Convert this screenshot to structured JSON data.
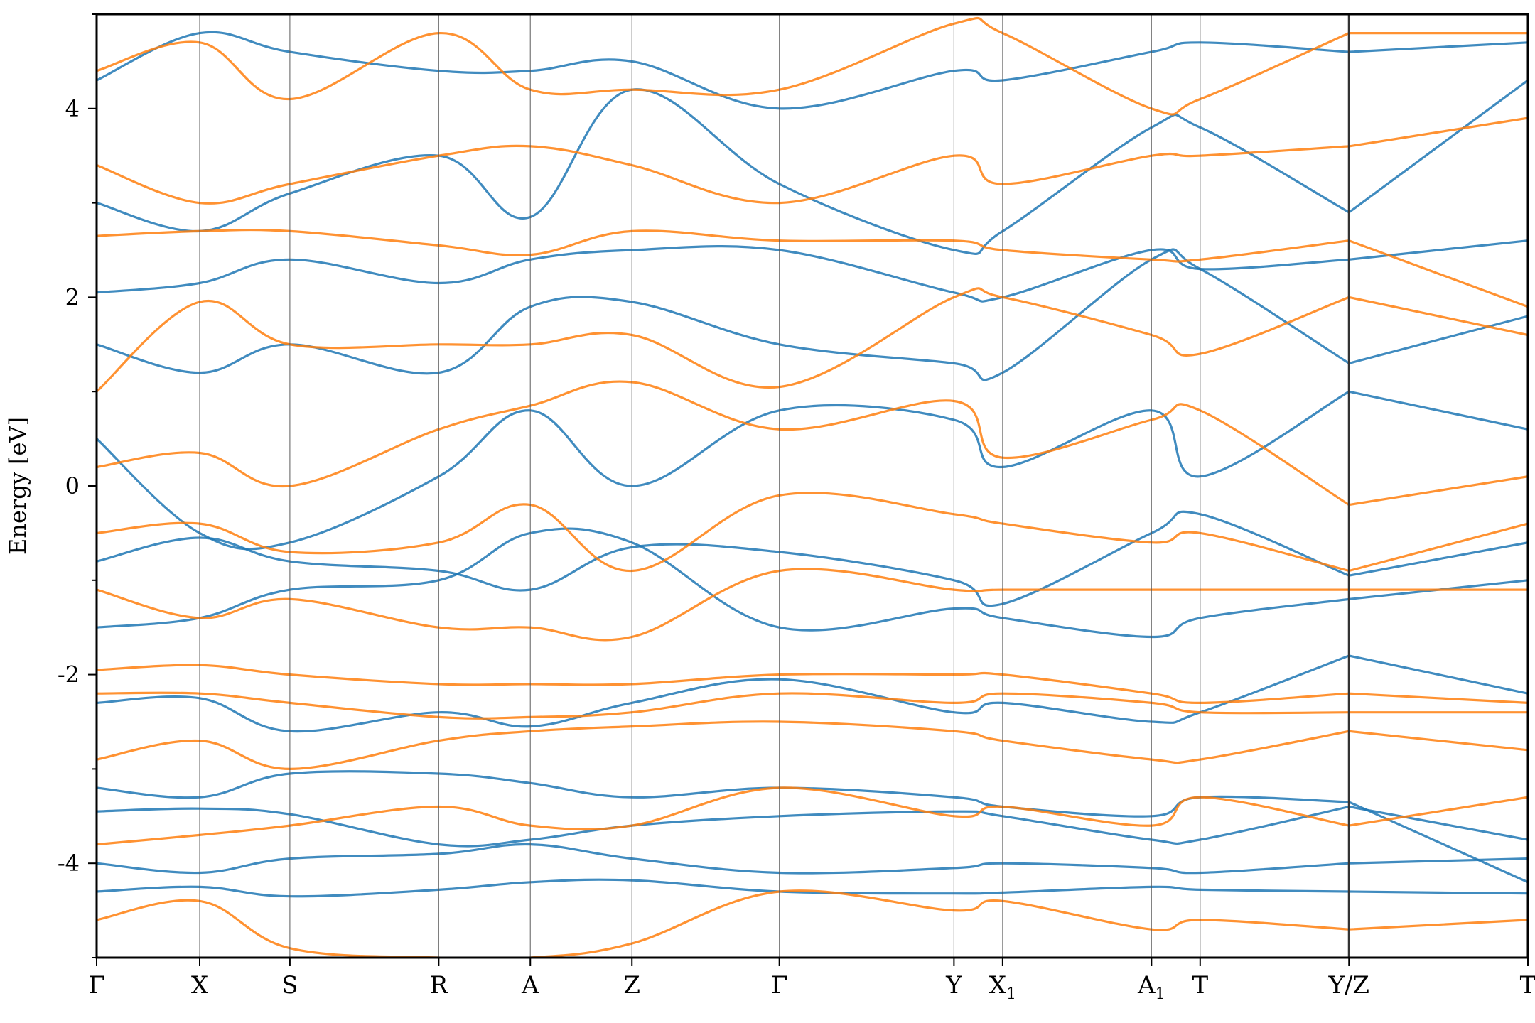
{
  "chart_data": {
    "type": "line",
    "title": "",
    "xlabel": "",
    "ylabel": "Energy [eV]",
    "ylim": [
      -5,
      5
    ],
    "yticks": [
      -4,
      -2,
      0,
      2,
      4
    ],
    "ytick_labels": [
      "-4",
      "-2",
      "0",
      "2",
      "4"
    ],
    "high_symmetry_points": [
      "Γ",
      "X",
      "S",
      "R",
      "A",
      "Z",
      "Γ",
      "Y",
      "X1",
      "A1",
      "T",
      "Y/Z",
      "T"
    ],
    "kpath_positions": [
      0,
      0.072,
      0.135,
      0.239,
      0.303,
      0.374,
      0.477,
      0.599,
      0.633,
      0.737,
      0.771,
      0.875,
      1.0
    ],
    "segment_break_after": 11,
    "grid": false,
    "colors": {
      "spin_up": "#1f77b4",
      "spin_down": "#ff7f0e",
      "vline": "#555555"
    },
    "series": [
      {
        "name": "",
        "color": "#1f77b4",
        "bands": [
          [
            -4.3,
            -4.25,
            -4.35,
            -4.28,
            -4.2,
            -4.18,
            -4.3,
            -4.32,
            -4.31,
            -4.25,
            -4.28,
            -4.3,
            -4.32
          ],
          [
            -4.0,
            -4.1,
            -3.95,
            -3.9,
            -3.8,
            -3.95,
            -4.1,
            -4.05,
            -4.0,
            -4.05,
            -4.1,
            -4.0,
            -3.95
          ],
          [
            -3.45,
            -3.42,
            -3.48,
            -3.8,
            -3.75,
            -3.6,
            -3.5,
            -3.45,
            -3.5,
            -3.75,
            -3.75,
            -3.4,
            -3.75
          ],
          [
            -3.2,
            -3.3,
            -3.05,
            -3.05,
            -3.15,
            -3.3,
            -3.2,
            -3.3,
            -3.4,
            -3.5,
            -3.3,
            -3.35,
            -4.2
          ],
          [
            -2.3,
            -2.25,
            -2.6,
            -2.4,
            -2.55,
            -2.3,
            -2.05,
            -2.4,
            -2.3,
            -2.5,
            -2.4,
            -1.8,
            -2.2
          ],
          [
            -1.5,
            -1.4,
            -1.1,
            -1.0,
            -0.5,
            -0.6,
            -1.5,
            -1.3,
            -1.4,
            -1.6,
            -1.4,
            -1.2,
            -1.0
          ],
          [
            -0.8,
            -0.55,
            -0.8,
            -0.9,
            -1.1,
            -0.65,
            -0.7,
            -1.0,
            -1.25,
            -0.5,
            -0.3,
            -0.95,
            -0.6
          ],
          [
            0.5,
            -0.5,
            -0.6,
            0.1,
            0.8,
            0.0,
            0.8,
            0.7,
            0.2,
            0.8,
            0.1,
            1.0,
            0.6
          ],
          [
            1.5,
            1.2,
            1.5,
            1.2,
            1.9,
            1.95,
            1.5,
            1.3,
            1.2,
            2.4,
            2.3,
            1.3,
            1.8
          ],
          [
            2.05,
            2.15,
            2.4,
            2.15,
            2.4,
            2.5,
            2.5,
            2.05,
            2.0,
            2.5,
            2.3,
            2.4,
            2.6
          ],
          [
            3.0,
            2.7,
            3.1,
            3.5,
            2.85,
            4.2,
            3.2,
            2.5,
            2.7,
            3.8,
            3.8,
            2.9,
            4.3
          ],
          [
            4.3,
            4.8,
            4.6,
            4.4,
            4.4,
            4.5,
            4.0,
            4.4,
            4.3,
            4.6,
            4.7,
            4.6,
            4.7
          ]
        ]
      },
      {
        "name": "",
        "color": "#ff7f0e",
        "bands": [
          [
            -4.6,
            -4.4,
            -4.9,
            -5.0,
            -5.0,
            -4.85,
            -4.3,
            -4.5,
            -4.4,
            -4.7,
            -4.6,
            -4.7,
            -4.6
          ],
          [
            -3.8,
            -3.7,
            -3.6,
            -3.4,
            -3.6,
            -3.6,
            -3.2,
            -3.5,
            -3.4,
            -3.6,
            -3.3,
            -3.6,
            -3.3
          ],
          [
            -2.9,
            -2.7,
            -3.0,
            -2.7,
            -2.6,
            -2.55,
            -2.5,
            -2.6,
            -2.7,
            -2.9,
            -2.9,
            -2.6,
            -2.8
          ],
          [
            -2.2,
            -2.2,
            -2.3,
            -2.45,
            -2.45,
            -2.4,
            -2.2,
            -2.3,
            -2.2,
            -2.3,
            -2.4,
            -2.4,
            -2.4
          ],
          [
            -1.95,
            -1.9,
            -2.0,
            -2.1,
            -2.1,
            -2.1,
            -2.0,
            -2.0,
            -2.0,
            -2.2,
            -2.3,
            -2.2,
            -2.3
          ],
          [
            -1.1,
            -1.4,
            -1.2,
            -1.5,
            -1.5,
            -1.6,
            -0.9,
            -1.1,
            -1.1,
            -1.1,
            -1.1,
            -1.1,
            -1.1
          ],
          [
            -0.5,
            -0.4,
            -0.7,
            -0.6,
            -0.2,
            -0.9,
            -0.1,
            -0.3,
            -0.4,
            -0.6,
            -0.5,
            -0.9,
            -0.4
          ],
          [
            0.2,
            0.35,
            0.0,
            0.6,
            0.85,
            1.1,
            0.6,
            0.9,
            0.3,
            0.7,
            0.8,
            -0.2,
            0.1
          ],
          [
            1.0,
            1.95,
            1.5,
            1.5,
            1.5,
            1.6,
            1.05,
            2.0,
            2.0,
            1.6,
            1.4,
            2.0,
            1.6
          ],
          [
            2.65,
            2.7,
            2.7,
            2.55,
            2.45,
            2.7,
            2.6,
            2.6,
            2.5,
            2.4,
            2.4,
            2.6,
            1.9
          ],
          [
            3.4,
            3.0,
            3.2,
            3.5,
            3.6,
            3.4,
            3.0,
            3.5,
            3.2,
            3.5,
            3.5,
            3.6,
            3.9
          ],
          [
            4.4,
            4.7,
            4.1,
            4.8,
            4.2,
            4.2,
            4.2,
            4.9,
            4.8,
            4.0,
            4.1,
            4.8,
            4.8
          ]
        ]
      }
    ]
  }
}
